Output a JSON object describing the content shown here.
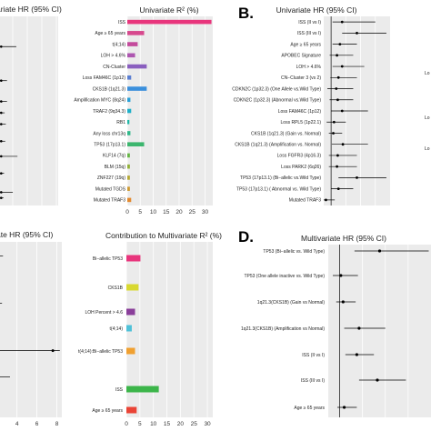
{
  "panels": [
    {
      "letter": "",
      "title": "",
      "x_label": "",
      "x_ticks": [],
      "categories": [],
      "values": []
    },
    {
      "letter": "B.",
      "title": "",
      "x_label": "",
      "x_ticks": [],
      "categories": [],
      "values": []
    },
    {
      "letter": "",
      "title": "",
      "x_label": "",
      "x_ticks": [],
      "categories": [],
      "values": []
    },
    {
      "letter": "D.",
      "title": "",
      "x_label": "",
      "x_ticks": [],
      "categories": [],
      "values": []
    }
  ],
  "chart_data": [
    {
      "id": "A-left-forest",
      "type": "scatter",
      "title": "ariate HR (95% CI)",
      "xlabel": "",
      "x_ticks": [],
      "points": [
        {
          "y": 0.16,
          "hr": 0.02,
          "lo": 0.0,
          "hi": 0.28
        },
        {
          "y": 0.34,
          "hr": 0.02,
          "lo": 0.0,
          "hi": 0.12
        },
        {
          "y": 0.45,
          "hr": 0.02,
          "lo": 0.0,
          "hi": 0.12
        },
        {
          "y": 0.51,
          "hr": 0.02,
          "lo": 0.0,
          "hi": 0.08
        },
        {
          "y": 0.57,
          "hr": 0.02,
          "lo": 0.0,
          "hi": 0.1
        },
        {
          "y": 0.66,
          "hr": 0.02,
          "lo": 0.0,
          "hi": 0.09
        },
        {
          "y": 0.74,
          "hr": 0.02,
          "lo": 0.0,
          "hi": 0.3
        },
        {
          "y": 0.83,
          "hr": 0.02,
          "lo": 0.0,
          "hi": 0.07
        },
        {
          "y": 0.93,
          "hr": 0.02,
          "lo": 0.0,
          "hi": 0.22
        },
        {
          "y": 0.96,
          "hr": 0.02,
          "lo": 0.0,
          "hi": 0.06
        }
      ]
    },
    {
      "id": "A-univariate-r2",
      "type": "bar",
      "orientation": "horizontal",
      "title": "Univariate R² (%)",
      "xlim": [
        0,
        33
      ],
      "x_ticks": [
        0,
        5,
        10,
        15,
        20,
        25,
        30
      ],
      "categories": [
        "ISS",
        "Age ≥ 65 years",
        "t(4;14)",
        "LOH > 4.6%",
        "CN-Cluster",
        "Loss FAM46C (1p12)",
        "CKS1B (1q21.3)",
        "Amplification MYC (8q24)",
        "TRAF2 (9q34.3)",
        "RB1",
        "Any loss chr13q",
        "TP53 (17p13.1)",
        "KLF14 (7q)",
        "BLM (15q)",
        "ZNF227 (19q)",
        "Mutated TGDS",
        "Mutated TRAF3"
      ],
      "values": [
        32.5,
        6.5,
        4.0,
        3.0,
        7.5,
        1.5,
        7.5,
        1.2,
        1.5,
        0.8,
        1.2,
        6.5,
        1.0,
        1.0,
        1.0,
        1.0,
        1.5
      ],
      "colors": [
        "#e8357c",
        "#d7498e",
        "#c44a9c",
        "#ad56b0",
        "#8a5fbf",
        "#5b7fd2",
        "#3a8fdc",
        "#28a0d8",
        "#1fb0c9",
        "#22b7a8",
        "#2fb98a",
        "#3cb66e",
        "#66b746",
        "#93b23a",
        "#b5a935",
        "#cf9b32",
        "#e38a2f"
      ]
    },
    {
      "id": "B-univariate-hr",
      "type": "scatter",
      "title": "Univariate HR (95% CI)",
      "xlabel": "",
      "x_ticks": [],
      "categories": [
        "ISS (II vs I)",
        "ISS (III vs I)",
        "Age ≥ 65 years",
        "APOBEC Signature",
        "LOH > 4.6%",
        "CN−Cluster 3 (vs 2)",
        "CDKN2C (1p32.3) (One Allele vs.Wild Type)",
        "CDKN2C (1p32.3) (Abnormal vs.Wild Type)",
        "Loss FAM46C (1p12)",
        "Loss RPL5 (1p22.1)",
        "CKS1B (1q21.3) (Gain vs. Normal)",
        "CKS1B (1q21.3) (Amplification vs. Normal)",
        "Loss FGFR3 (4p16.3)",
        "Loss PARK2 (6q26)",
        "TP53 (17p13.1) (Bi−allelic vs.Wild Type)",
        "TP53 (17p13.1) ( Abnormal vs. Wild Type)",
        "Mutated TRAF3"
      ],
      "hr": [
        2.5,
        4.5,
        2.2,
        1.8,
        2.5,
        2.0,
        1.7,
        1.9,
        2.5,
        1.4,
        1.3,
        2.6,
        1.9,
        1.8,
        4.5,
        2.0,
        0.3
      ],
      "lo": [
        1.2,
        2.5,
        1.2,
        0.8,
        1.2,
        0.9,
        0.5,
        0.8,
        1.0,
        0.4,
        0.7,
        1.1,
        0.7,
        0.7,
        2.0,
        1.0,
        0.0
      ],
      "hi": [
        7.0,
        8.5,
        4.5,
        4.0,
        5.5,
        4.5,
        4.0,
        4.0,
        6.0,
        3.0,
        2.5,
        6.0,
        4.5,
        4.5,
        8.5,
        4.0,
        1.5
      ],
      "xlim": [
        0,
        9
      ]
    },
    {
      "id": "B-right-labels",
      "type": "table",
      "values": [
        "Lo",
        "Lo",
        "Lo"
      ]
    },
    {
      "id": "C-left-forest",
      "type": "scatter",
      "title": "ate HR (95% CI)",
      "xlabel": "",
      "x_ticks": [
        4,
        6,
        8
      ],
      "xlim": [
        2.3,
        8.5
      ],
      "points": [
        {
          "y": 0.08,
          "hr": null,
          "lo": 2.3,
          "hi": 2.6
        },
        {
          "y": 0.35,
          "hr": null,
          "lo": 2.3,
          "hi": 2.5
        },
        {
          "y": 0.62,
          "hr": 7.6,
          "lo": 2.3,
          "hi": 8.3
        },
        {
          "y": 0.77,
          "hr": null,
          "lo": 2.3,
          "hi": 3.3
        }
      ]
    },
    {
      "id": "C-contribution",
      "type": "bar",
      "orientation": "horizontal",
      "title": "Contribution to Multivariate R² (%)",
      "xlim": [
        0,
        32
      ],
      "x_ticks": [
        0,
        5,
        10,
        15,
        20,
        25,
        30
      ],
      "categories": [
        "Bi−allelic TP53",
        "CKS1B",
        "LOH Percent > 4.6",
        "t(4;14)",
        "t(4;14):Bi−allelic TP53",
        "ISS",
        "Age ≥ 65 years"
      ],
      "values": [
        5.2,
        4.5,
        3.2,
        2.0,
        3.2,
        12.0,
        3.8
      ],
      "colors": [
        "#e8357c",
        "#d8d830",
        "#8a3f9a",
        "#4fc1d8",
        "#f0a030",
        "#3cb54a",
        "#ea4436"
      ]
    },
    {
      "id": "D-multivariate-hr",
      "type": "scatter",
      "title": "Multivariate HR (95% CI)",
      "xlabel": "",
      "x_ticks": [],
      "categories": [
        "TP53 (Bi−allelic vs. Wild Type)",
        "TP53 (One allele inactive vs. Wild Type)",
        "1q21.3(CKS1B) (Gain vs Normal)",
        "1q21.3(CKS1B) (Amplification vs Normal)",
        "ISS (II vs I)",
        "ISS (III vs I)",
        "Age ≥ 65 years"
      ],
      "hr": [
        4.5,
        1.1,
        1.3,
        2.7,
        2.5,
        4.3,
        1.4
      ],
      "lo": [
        2.3,
        0.4,
        0.7,
        1.4,
        1.5,
        2.7,
        0.8
      ],
      "hi": [
        8.8,
        2.6,
        2.4,
        5.0,
        4.0,
        6.8,
        2.5
      ],
      "xlim": [
        0,
        9
      ]
    }
  ]
}
